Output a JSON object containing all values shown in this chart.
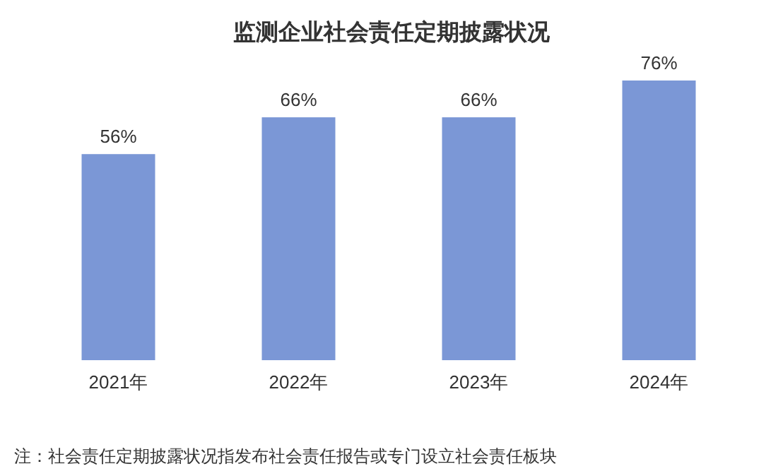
{
  "chart_data": {
    "type": "bar",
    "title": "监测企业社会责任定期披露状况",
    "categories": [
      "2021年",
      "2022年",
      "2023年",
      "2024年"
    ],
    "values": [
      56,
      66,
      66,
      76
    ],
    "value_labels": [
      "56%",
      "66%",
      "66%",
      "76%"
    ],
    "color": "#7b97d6",
    "annotations": [
      "注：社会责任定期披露状况指发布社会责任报告或专门设立社会责任板块"
    ]
  }
}
